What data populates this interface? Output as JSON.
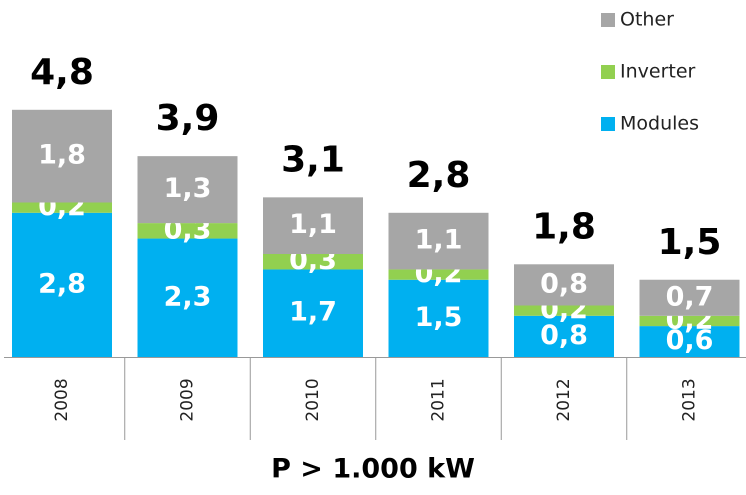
{
  "chart_data": {
    "type": "stacked_bar",
    "xlabel": "P > 1.000 kW",
    "categories": [
      "2008",
      "2009",
      "2010",
      "2011",
      "2012",
      "2013"
    ],
    "series": [
      {
        "name": "Modules",
        "color": "#00b0f0",
        "values": [
          2.8,
          2.3,
          1.7,
          1.5,
          0.8,
          0.6
        ],
        "value_labels": [
          "2,8",
          "2,3",
          "1,7",
          "1,5",
          "0,8",
          "0,6"
        ]
      },
      {
        "name": "Inverter",
        "color": "#92d050",
        "values": [
          0.2,
          0.3,
          0.3,
          0.2,
          0.2,
          0.2
        ],
        "value_labels": [
          "0,2",
          "0,3",
          "0,3",
          "0,2",
          "0,2",
          "0,2"
        ]
      },
      {
        "name": "Other",
        "color": "#a6a6a6",
        "values": [
          1.8,
          1.3,
          1.1,
          1.1,
          0.8,
          0.7
        ],
        "value_labels": [
          "1,8",
          "1,3",
          "1,1",
          "1,1",
          "0,8",
          "0,7"
        ]
      }
    ],
    "totals": [
      4.8,
      3.9,
      3.1,
      2.8,
      1.8,
      1.5
    ],
    "total_labels": [
      "4,8",
      "3,9",
      "3,1",
      "2,8",
      "1,8",
      "1,5"
    ]
  }
}
